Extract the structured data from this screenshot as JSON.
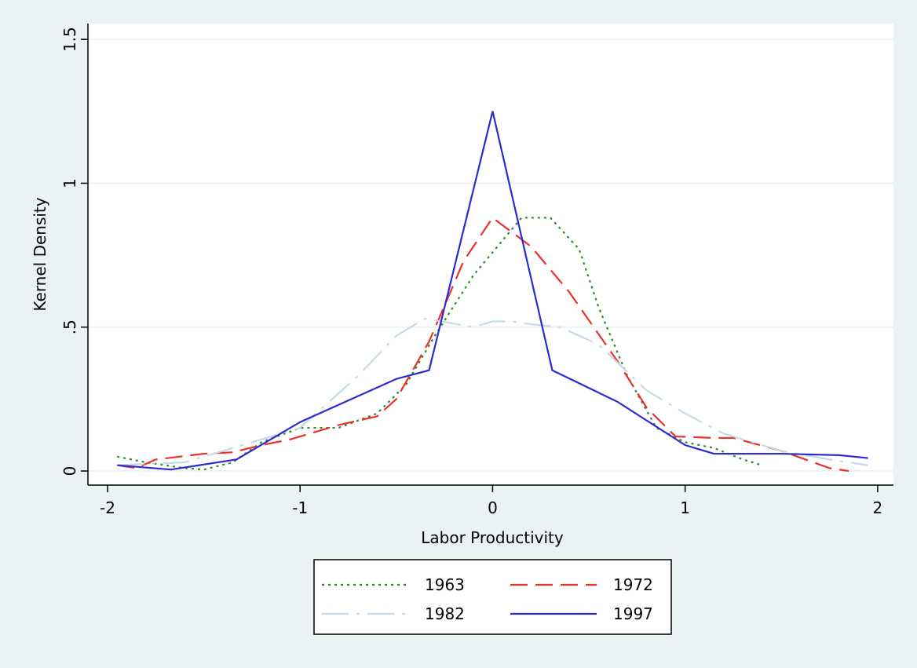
{
  "chart_data": {
    "type": "line",
    "xlabel": "Labor Productivity",
    "ylabel": "Kernel Density",
    "xlim": [
      -2.102,
      2.082
    ],
    "ylim": [
      -0.049,
      1.555
    ],
    "xticks": [
      -2,
      -1,
      0,
      1,
      2
    ],
    "yticks": [
      0,
      {
        "value": 0.5,
        "label": ".5"
      },
      1,
      1.5
    ],
    "grid": true,
    "legend": "bottom",
    "series": [
      {
        "name": "1963",
        "color": "#2e8b2e",
        "dash": "dotted",
        "x": [
          -1.95,
          -1.8,
          -1.6,
          -1.5,
          -1.35,
          -1.2,
          -1,
          -0.8,
          -0.6,
          -0.45,
          -0.3,
          -0.1,
          0.05,
          0.15,
          0.3,
          0.45,
          0.55,
          0.7,
          0.85,
          1,
          1.15,
          1.3,
          1.4
        ],
        "values": [
          0.05,
          0.03,
          0.01,
          0.005,
          0.03,
          0.1,
          0.15,
          0.15,
          0.2,
          0.3,
          0.47,
          0.68,
          0.8,
          0.88,
          0.88,
          0.77,
          0.57,
          0.33,
          0.15,
          0.1,
          0.08,
          0.04,
          0.02
        ]
      },
      {
        "name": "1972",
        "color": "#e8322b",
        "dash": "dashed",
        "x": [
          -1.95,
          -1.85,
          -1.75,
          -1.5,
          -1.35,
          -1.2,
          -1.05,
          -0.8,
          -0.6,
          -0.5,
          -0.33,
          -0.15,
          0,
          0.2,
          0.4,
          0.65,
          0.8,
          0.95,
          1.15,
          1.25,
          1.5,
          1.75,
          1.85
        ],
        "values": [
          0.02,
          0.01,
          0.04,
          0.06,
          0.065,
          0.09,
          0.11,
          0.16,
          0.19,
          0.25,
          0.45,
          0.73,
          0.88,
          0.78,
          0.62,
          0.38,
          0.22,
          0.12,
          0.115,
          0.115,
          0.07,
          0.01,
          0
        ]
      },
      {
        "name": "1982",
        "color": "#c3dbe6",
        "dash": "dashdot",
        "x": [
          -1.95,
          -1.6,
          -1.3,
          -1,
          -0.7,
          -0.5,
          -0.35,
          -0.1,
          0,
          0.1,
          0.2,
          0.35,
          0.55,
          0.8,
          1,
          1.2,
          1.5,
          1.75,
          1.95
        ],
        "values": [
          0.02,
          0.03,
          0.09,
          0.15,
          0.33,
          0.47,
          0.53,
          0.5,
          0.52,
          0.52,
          0.51,
          0.5,
          0.44,
          0.28,
          0.2,
          0.13,
          0.07,
          0.04,
          0.02
        ]
      },
      {
        "name": "1997",
        "color": "#2b2bd1",
        "dash": "solid",
        "x": [
          -1.95,
          -1.67,
          -1.33,
          -1,
          -0.5,
          -0.33,
          0,
          0.31,
          0.65,
          1,
          1.15,
          1.5,
          1.8,
          1.95
        ],
        "values": [
          0.02,
          0.005,
          0.04,
          0.17,
          0.32,
          0.35,
          1.25,
          0.35,
          0.24,
          0.09,
          0.06,
          0.06,
          0.055,
          0.045
        ]
      }
    ]
  }
}
